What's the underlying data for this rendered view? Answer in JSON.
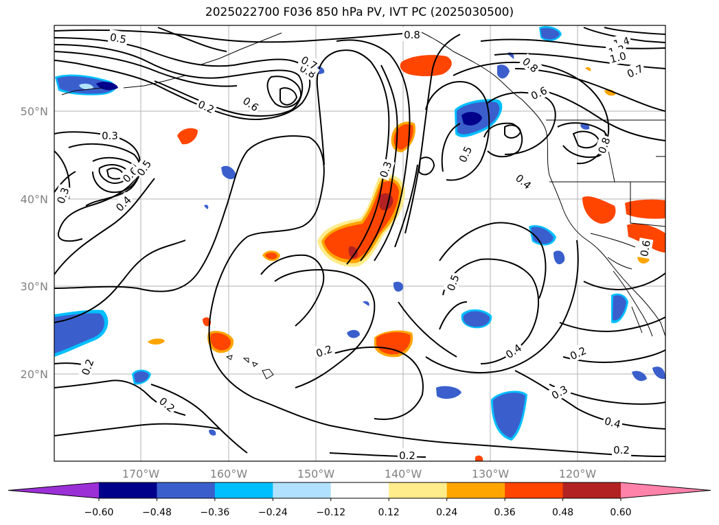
{
  "title": "2025022700 F036 850 hPa PV, IVT PC (2025030500)",
  "lat_labels": [
    "50°N",
    "40°N",
    "30°N",
    "20°N"
  ],
  "lon_labels": [
    "170°W",
    "160°W",
    "150°W",
    "140°W",
    "130°W",
    "120°W"
  ],
  "colorbar": {
    "ticks": [
      "−0.60",
      "−0.48",
      "−0.36",
      "−0.24",
      "−0.12",
      "0.12",
      "0.24",
      "0.36",
      "0.48",
      "0.60"
    ],
    "colors": [
      "#9b30d6",
      "#00008b",
      "#3a5fcd",
      "#00bfff",
      "#b0e2ff",
      "#ffffff",
      "#ffec8b",
      "#ffa500",
      "#ff4500",
      "#b22222",
      "#ff82ab"
    ]
  },
  "contour_labels": [
    "0.5",
    "0.8",
    "1.4",
    "1.2",
    "1.0",
    "0.7",
    "0.8",
    "0.6",
    "0.8",
    "0.7",
    "0.2",
    "0.6",
    "0.3",
    "0.6",
    "0.5",
    "0.4",
    "0.3",
    "0.5",
    "0.4",
    "0.8",
    "0.3",
    "0.5",
    "0.6",
    "0.4",
    "0.2",
    "0.2",
    "0.3",
    "0.4",
    "0.2",
    "0.2",
    "0.2",
    "0.2"
  ]
}
